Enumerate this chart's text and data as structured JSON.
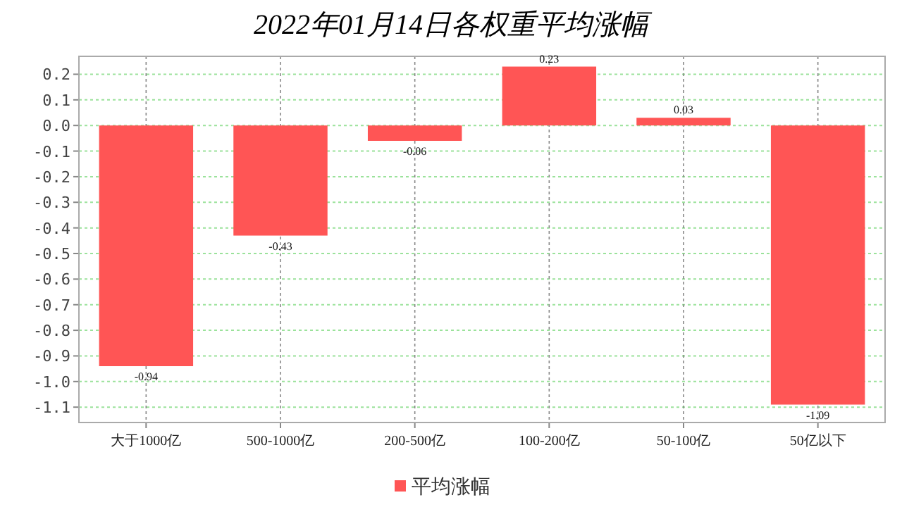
{
  "chart_data": {
    "type": "bar",
    "title": "2022年01月14日各权重平均涨幅",
    "categories": [
      "大于1000亿",
      "500-1000亿",
      "200-500亿",
      "100-200亿",
      "50-100亿",
      "50亿以下"
    ],
    "series": [
      {
        "name": "平均涨幅",
        "color": "#ff5555",
        "values": [
          -0.94,
          -0.43,
          -0.06,
          0.23,
          0.03,
          -1.09
        ]
      }
    ],
    "ylim": [
      -1.16,
      0.27
    ],
    "yticks": [
      {
        "value": 0.2,
        "label": "0.2"
      },
      {
        "value": 0.1,
        "label": "0.1"
      },
      {
        "value": 0,
        "label": "0.0"
      },
      {
        "value": -0.1,
        "label": "-0.1"
      },
      {
        "value": -0.2,
        "label": "-0.2"
      },
      {
        "value": -0.3,
        "label": "-0.3"
      },
      {
        "value": -0.4,
        "label": "-0.4"
      },
      {
        "value": -0.5,
        "label": "-0.5"
      },
      {
        "value": -0.6,
        "label": "-0.6"
      },
      {
        "value": -0.7,
        "label": "-0.7"
      },
      {
        "value": -0.8,
        "label": "-0.8"
      },
      {
        "value": -0.9,
        "label": "-0.9"
      },
      {
        "value": -1,
        "label": "-1.0"
      },
      {
        "value": -1.1,
        "label": "-1.1"
      }
    ],
    "grid": true,
    "legend": "bottom",
    "data_labels": true
  }
}
